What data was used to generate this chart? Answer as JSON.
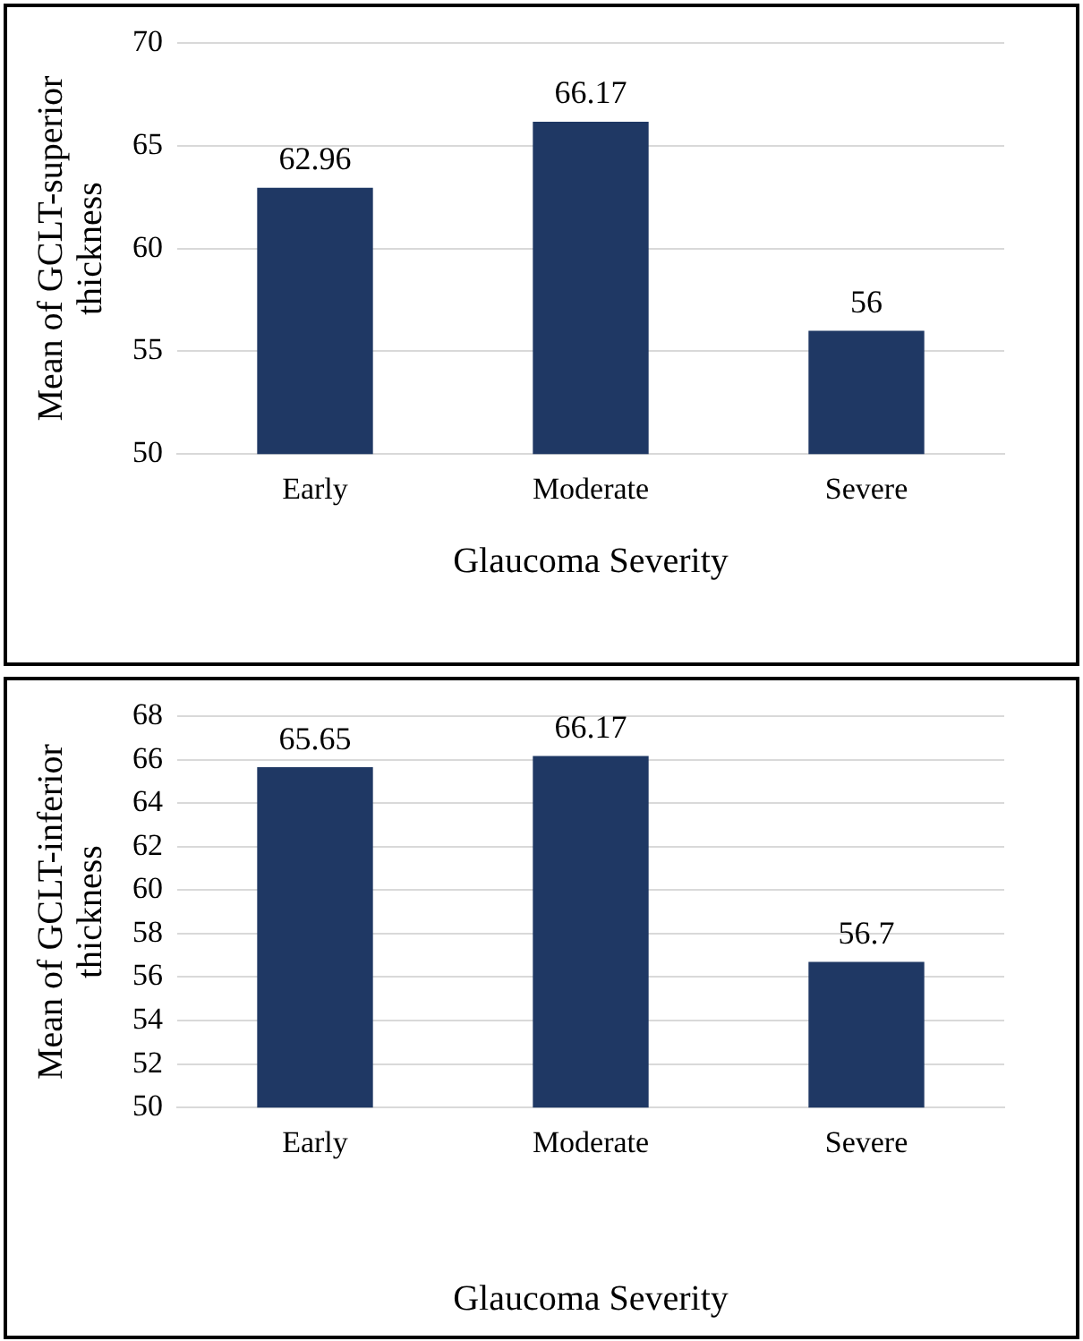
{
  "chart_data": [
    {
      "type": "bar",
      "categories": [
        "Early",
        "Moderate",
        "Severe"
      ],
      "values": [
        62.96,
        66.17,
        56
      ],
      "color": "#1f3864",
      "xlabel": "Glaucoma Severity",
      "ylabel": "Mean of GCLT-superior thickness",
      "ylim": [
        50,
        70
      ],
      "yticks": [
        50,
        55,
        60,
        65,
        70
      ],
      "grid": "y",
      "data_labels": true
    },
    {
      "type": "bar",
      "categories": [
        "Early",
        "Moderate",
        "Severe"
      ],
      "values": [
        65.65,
        66.17,
        56.7
      ],
      "color": "#1f3864",
      "xlabel": "Glaucoma Severity",
      "ylabel": "Mean of GCLT-inferior thickness",
      "ylim": [
        50,
        68
      ],
      "yticks": [
        50,
        52,
        54,
        56,
        58,
        60,
        62,
        64,
        66,
        68
      ],
      "grid": "y",
      "data_labels": true
    }
  ]
}
